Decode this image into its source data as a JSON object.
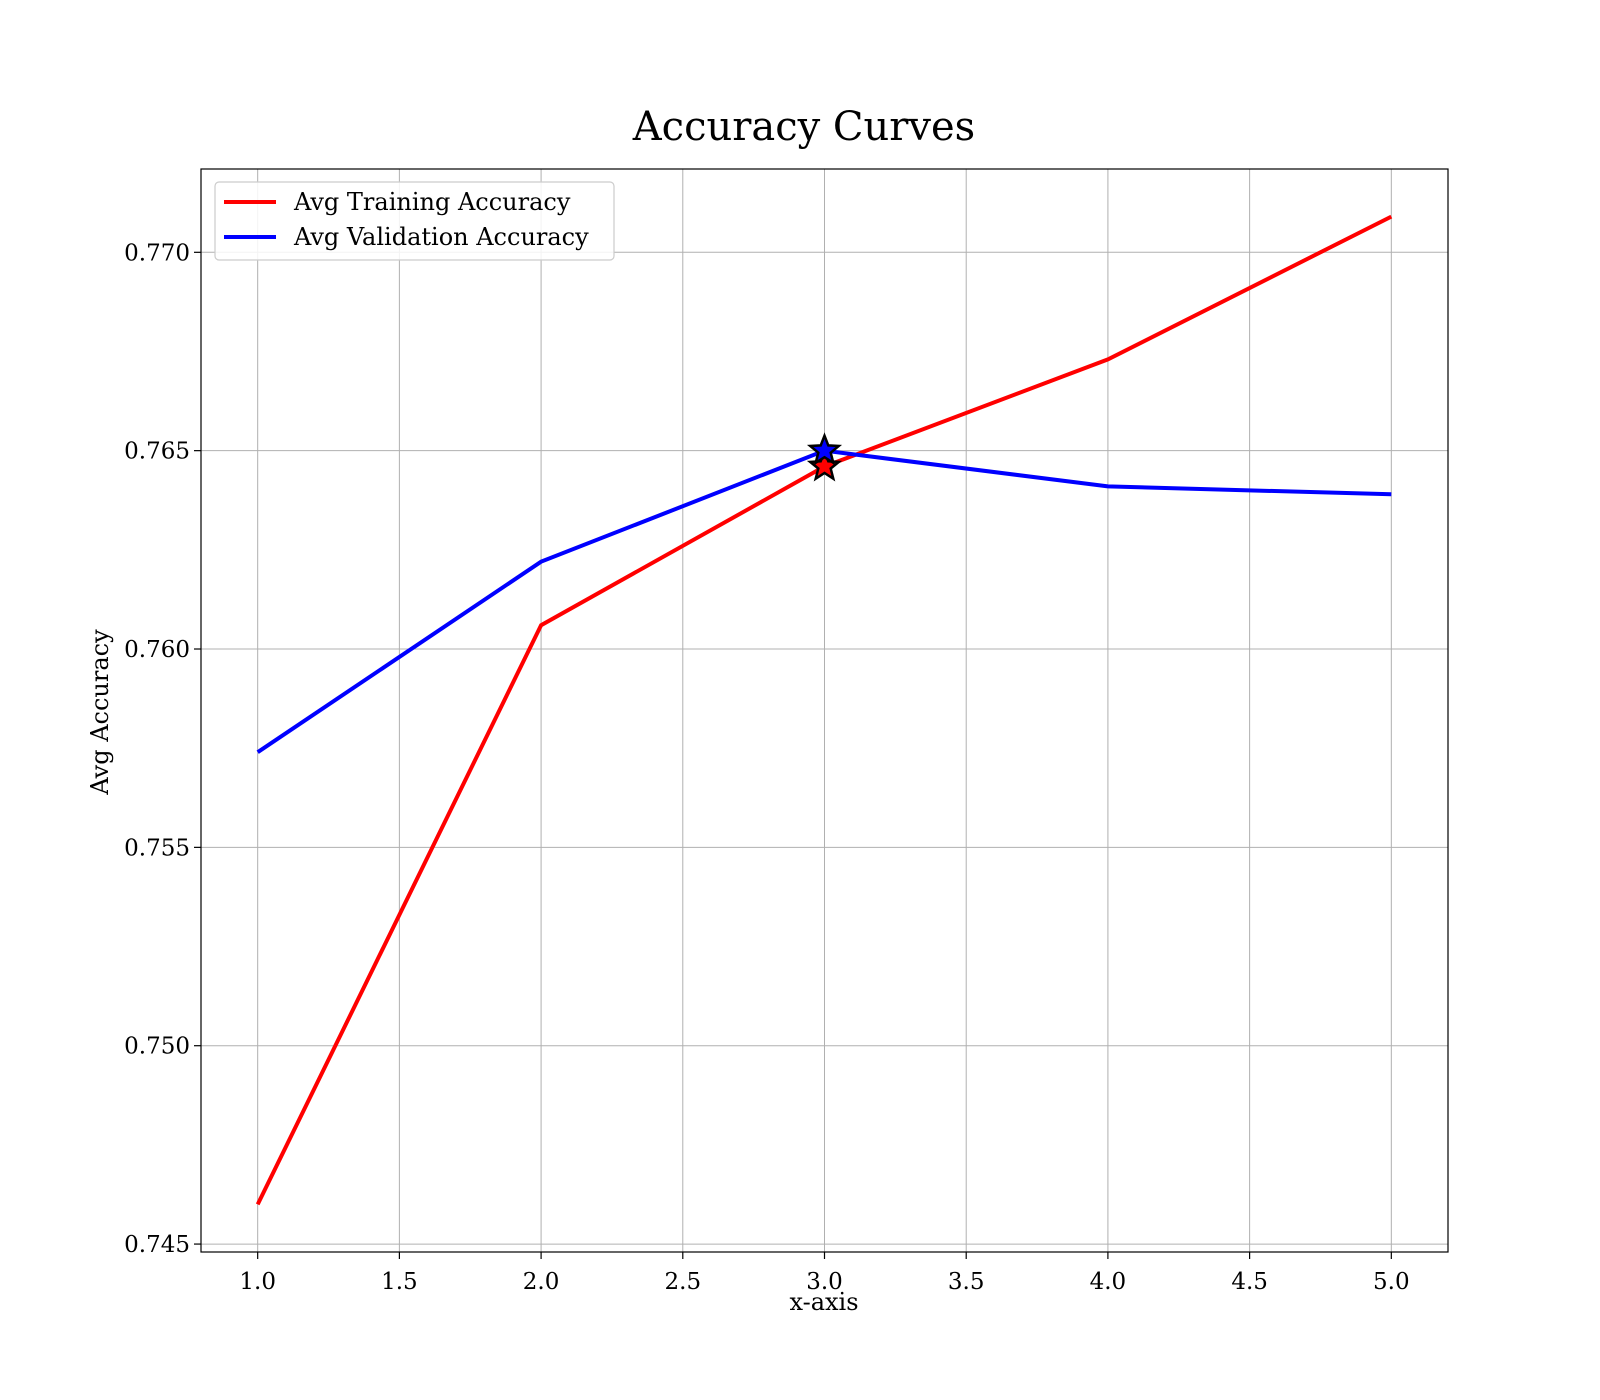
{
  "chart_data": {
    "type": "line",
    "title": "Accuracy Curves",
    "xlabel": "x-axis",
    "ylabel": "Avg Accuracy",
    "x": [
      1.0,
      2.0,
      3.0,
      4.0,
      5.0
    ],
    "xlim": [
      0.8,
      5.2
    ],
    "ylim": [
      0.7448,
      0.7721
    ],
    "xticks": [
      1.0,
      1.5,
      2.0,
      2.5,
      3.0,
      3.5,
      4.0,
      4.5,
      5.0
    ],
    "xtick_labels": [
      "1.0",
      "1.5",
      "2.0",
      "2.5",
      "3.0",
      "3.5",
      "4.0",
      "4.5",
      "5.0"
    ],
    "yticks": [
      0.745,
      0.75,
      0.755,
      0.76,
      0.765,
      0.77
    ],
    "ytick_labels": [
      "0.745",
      "0.750",
      "0.755",
      "0.760",
      "0.765",
      "0.770"
    ],
    "grid": true,
    "legend_position": "top-left",
    "series": [
      {
        "name": "Avg Training Accuracy",
        "color": "#ff0000",
        "values": [
          0.746,
          0.7606,
          0.7646,
          0.7673,
          0.7709
        ],
        "marker": {
          "x": 3.0,
          "y": 0.7646,
          "shape": "star"
        }
      },
      {
        "name": "Avg Validation Accuracy",
        "color": "#0000ff",
        "values": [
          0.7574,
          0.7622,
          0.765,
          0.7641,
          0.7639
        ],
        "marker": {
          "x": 3.0,
          "y": 0.765,
          "shape": "star"
        }
      }
    ]
  }
}
